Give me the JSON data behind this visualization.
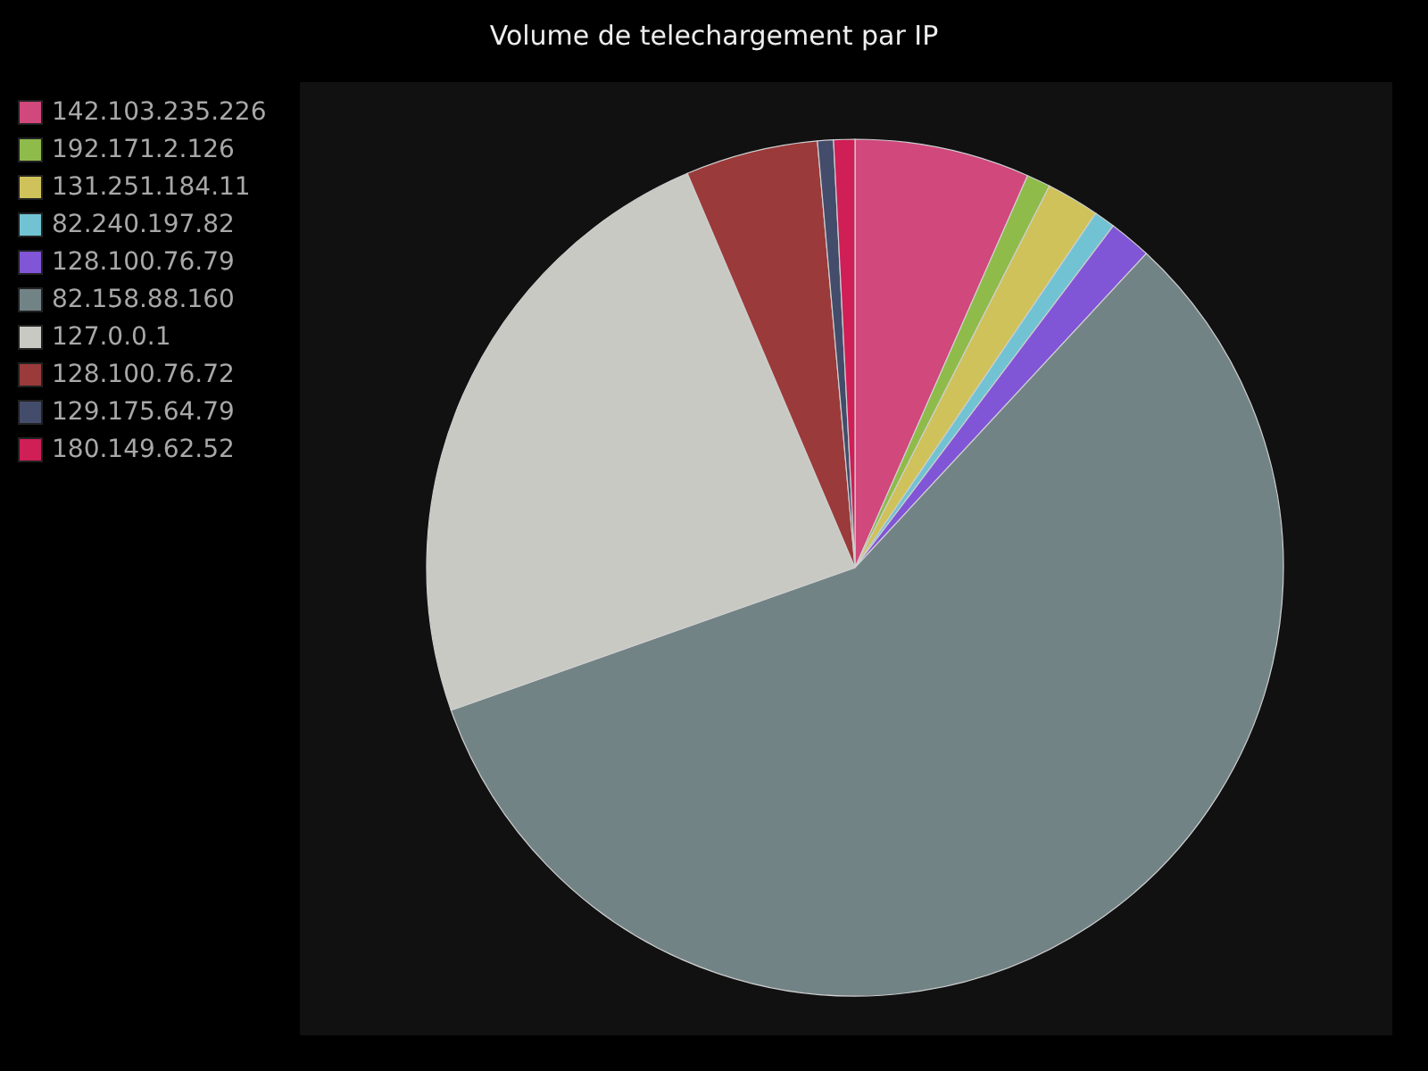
{
  "chart_data": {
    "type": "pie",
    "title": "Volume de telechargement par IP",
    "categories": [
      "142.103.235.226",
      "192.171.2.126",
      "131.251.184.11",
      "82.240.197.82",
      "128.100.76.79",
      "82.158.88.160",
      "127.0.0.1",
      "128.100.76.72",
      "129.175.64.79",
      "180.149.62.52"
    ],
    "values": [
      6.6,
      0.9,
      2,
      0.8,
      1.6,
      57.7,
      24,
      5,
      0.6,
      0.8
    ],
    "colors": [
      "#d0487c",
      "#8fbb4a",
      "#cfc25a",
      "#71c3d3",
      "#8055d6",
      "#728386",
      "#c8c9c3",
      "#9b3a3a",
      "#434c6a",
      "#d01e56"
    ],
    "legend": "top left"
  }
}
